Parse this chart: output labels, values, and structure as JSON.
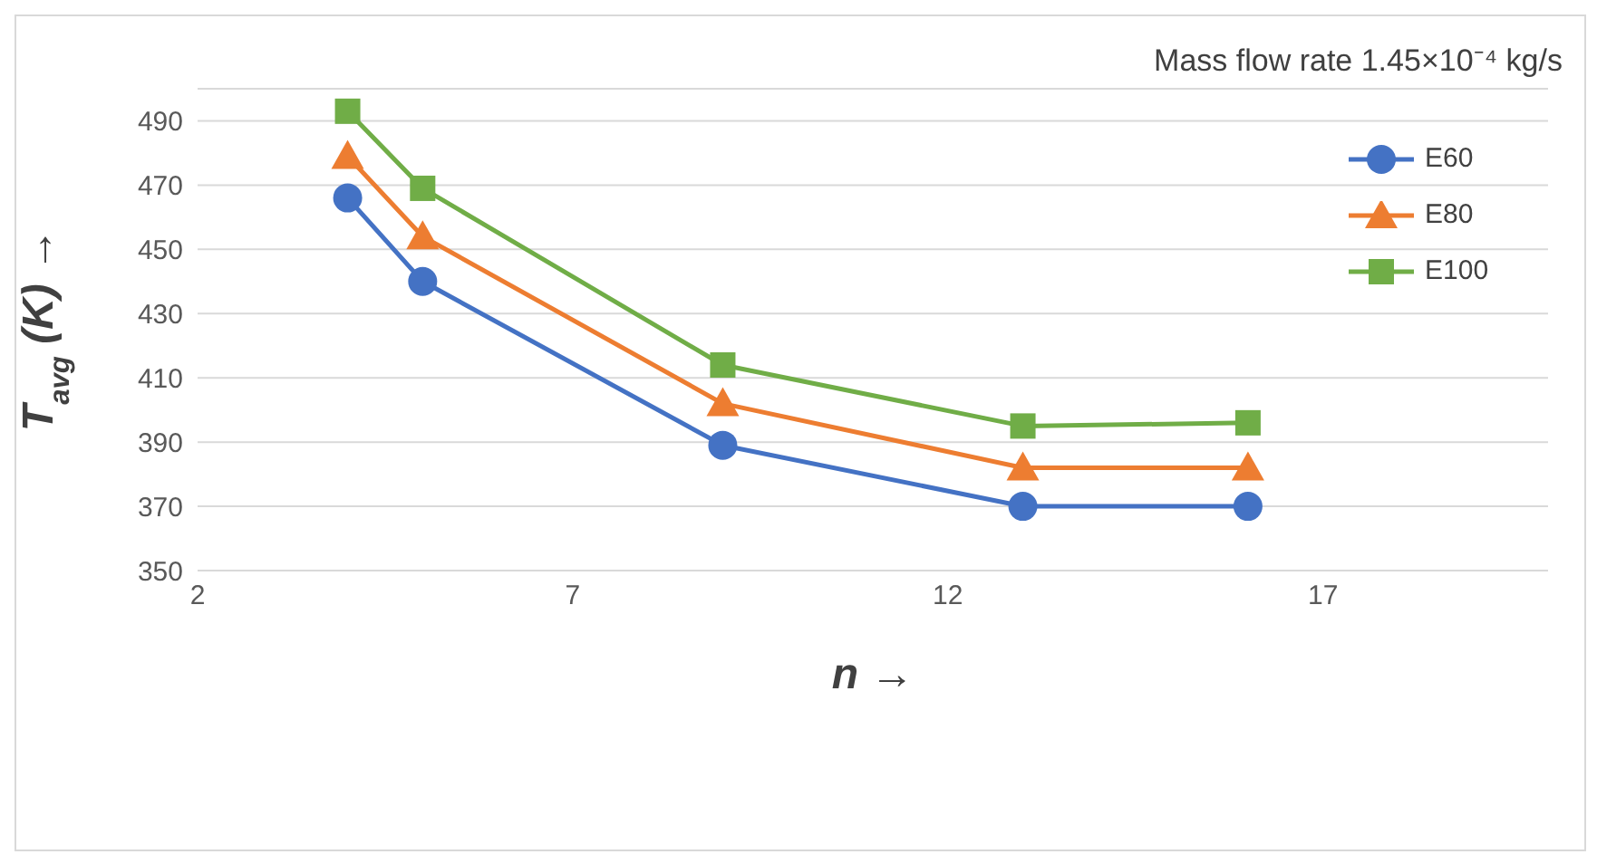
{
  "chart_data": {
    "type": "line",
    "xlabel": "n →",
    "ylabel": "T$_{avg}$ (K) →",
    "annotations": [
      "Mass flow rate 1.45×10⁻⁴ kg/s"
    ],
    "x": [
      4,
      5,
      9,
      13,
      16
    ],
    "series": [
      {
        "name": "E60",
        "color": "#4472c4",
        "marker": "circle",
        "values": [
          466,
          440,
          389,
          370,
          370
        ]
      },
      {
        "name": "E80",
        "color": "#ed7d31",
        "marker": "triangle",
        "values": [
          479,
          454,
          402,
          382,
          382
        ]
      },
      {
        "name": "E100",
        "color": "#70ad47",
        "marker": "square",
        "values": [
          493,
          469,
          414,
          395,
          396
        ]
      }
    ],
    "xlim": [
      2,
      20
    ],
    "xticks": [
      2,
      7,
      12,
      17
    ],
    "ylim": [
      350,
      500
    ],
    "yticks": [
      350,
      370,
      390,
      410,
      430,
      450,
      470,
      490
    ],
    "grid": "y",
    "legend": "right",
    "line_style": "solid"
  }
}
